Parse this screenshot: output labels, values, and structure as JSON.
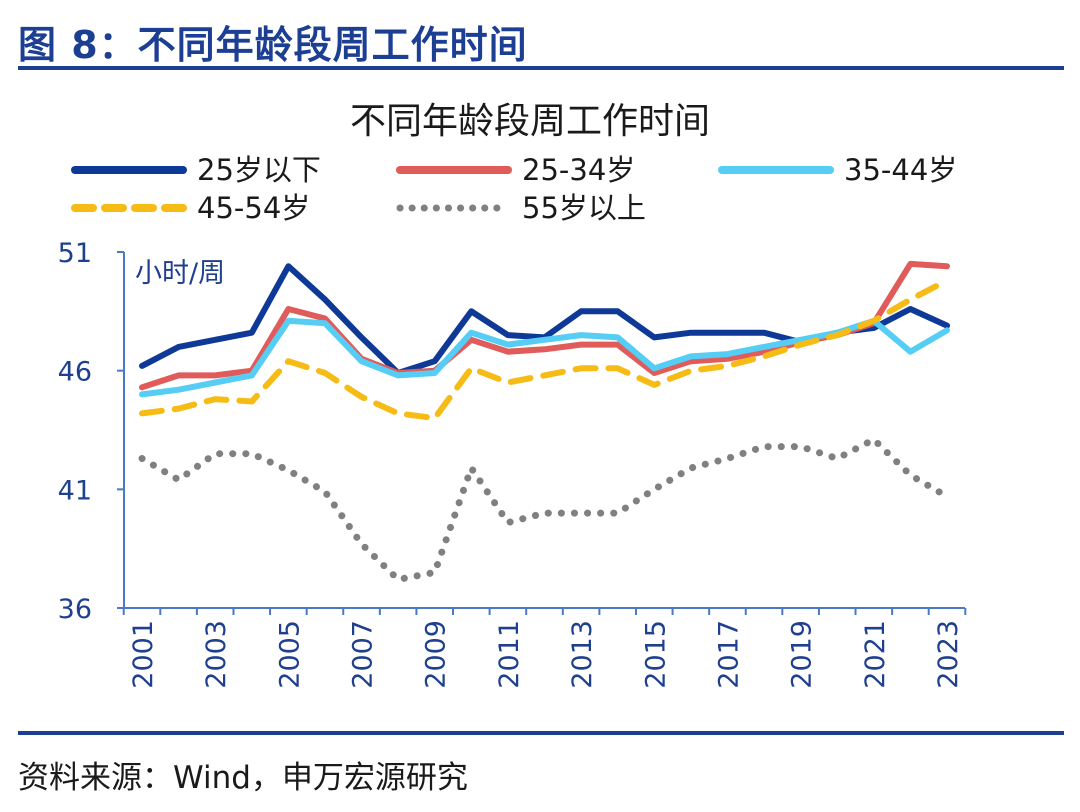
{
  "figure_title": "图 8：不同年龄段周工作时间",
  "source": "资料来源：Wind，申万宏源研究",
  "chart_data": {
    "type": "line",
    "title": "不同年龄段周工作时间",
    "unit_label": "小时/周",
    "x": [
      2001,
      2002,
      2003,
      2004,
      2005,
      2006,
      2007,
      2008,
      2009,
      2010,
      2011,
      2012,
      2013,
      2014,
      2015,
      2016,
      2017,
      2018,
      2019,
      2020,
      2021,
      2022,
      2023
    ],
    "x_tick_labels": [
      "2001",
      "2003",
      "2005",
      "2007",
      "2009",
      "2011",
      "2013",
      "2015",
      "2017",
      "2019",
      "2021",
      "2023"
    ],
    "y_ticks": [
      "51",
      "46",
      "41",
      "36"
    ],
    "ylim": [
      36,
      51
    ],
    "legend_position": "top",
    "series": [
      {
        "name": "25岁以下",
        "color": "#0f3996",
        "style": "solid",
        "values": [
          46.2,
          47.0,
          47.3,
          47.6,
          50.4,
          49.0,
          47.4,
          45.9,
          46.4,
          48.5,
          47.5,
          47.4,
          48.5,
          48.5,
          47.4,
          47.6,
          47.6,
          47.6,
          47.2,
          47.6,
          47.8,
          48.6,
          47.9
        ]
      },
      {
        "name": "25-34岁",
        "color": "#e05c5a",
        "style": "solid",
        "values": [
          45.3,
          45.8,
          45.8,
          46.0,
          48.6,
          48.2,
          46.5,
          45.9,
          46.0,
          47.3,
          46.8,
          46.9,
          47.1,
          47.1,
          45.9,
          46.4,
          46.5,
          46.8,
          47.2,
          47.5,
          48.0,
          50.5,
          50.4
        ]
      },
      {
        "name": "35-44岁",
        "color": "#55cdf4",
        "style": "solid",
        "values": [
          45.0,
          45.2,
          45.5,
          45.8,
          48.1,
          48.0,
          46.4,
          45.8,
          45.9,
          47.6,
          47.1,
          47.3,
          47.5,
          47.4,
          46.1,
          46.6,
          46.7,
          47.0,
          47.3,
          47.6,
          48.1,
          46.8,
          47.7
        ]
      },
      {
        "name": "45-54岁",
        "color": "#f6bb15",
        "style": "dashed",
        "values": [
          44.2,
          44.4,
          44.8,
          44.7,
          46.4,
          45.9,
          44.9,
          44.2,
          44.0,
          46.1,
          45.5,
          45.8,
          46.1,
          46.1,
          45.4,
          46.0,
          46.2,
          46.6,
          47.1,
          47.5,
          48.1,
          49.0,
          49.8
        ]
      },
      {
        "name": "55岁以上",
        "color": "#808080",
        "style": "dotted",
        "values": [
          42.3,
          41.4,
          42.5,
          42.5,
          41.8,
          40.9,
          38.7,
          37.2,
          37.5,
          41.9,
          39.6,
          40.0,
          40.0,
          40.0,
          41.0,
          41.9,
          42.3,
          42.8,
          42.8,
          42.3,
          43.1,
          41.6,
          40.7
        ]
      }
    ]
  }
}
